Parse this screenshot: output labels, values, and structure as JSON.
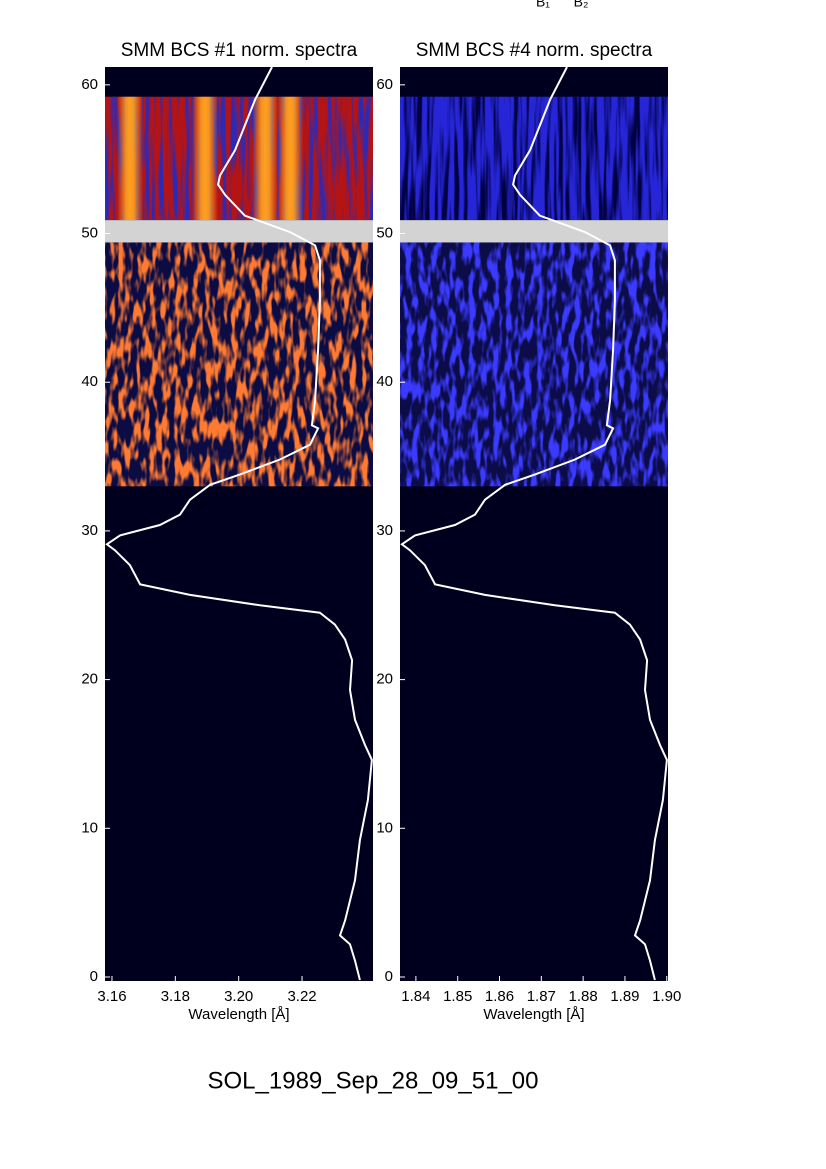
{
  "top_labels": [
    "B₁",
    "B₂"
  ],
  "chart_data": [
    {
      "type": "heatmap",
      "title": "SMM BCS #1 norm. spectra",
      "x_label": "Wavelength [Å]",
      "xlim": [
        3.1578,
        3.2424
      ],
      "xticks": [
        3.16,
        3.18,
        {
          "value": 3.2,
          "label": "3.20"
        },
        3.22
      ],
      "ylim": [
        -0.27,
        61.2
      ],
      "yticks": [
        0,
        10,
        20,
        30,
        40,
        50,
        60
      ],
      "background": "#00001e",
      "gap": [
        49.4,
        50.9
      ],
      "gap_color": "#d3d3d3",
      "bands": [
        {
          "y": [
            50.9,
            59.2
          ],
          "color": "#b41414",
          "noise_color": "#2a2ab8"
        },
        {
          "y": [
            33.0,
            49.4
          ],
          "color": "#0c0c44",
          "noise_color": "#ff7a30"
        }
      ],
      "emission_lines": [
        3.1657,
        3.1894,
        3.2084,
        3.2163
      ],
      "emission_color": "#ffa020"
    },
    {
      "type": "heatmap",
      "title": "SMM BCS #4 norm. spectra",
      "x_label": "Wavelength [Å]",
      "xlim": [
        1.8362,
        1.9003
      ],
      "xticks": [
        1.84,
        1.85,
        1.86,
        1.87,
        1.88,
        1.89,
        {
          "value": 1.9,
          "label": "1.90"
        }
      ],
      "ylim": [
        -0.27,
        61.2
      ],
      "yticks": [
        0,
        10,
        20,
        30,
        40,
        50,
        60
      ],
      "background": "#00001e",
      "gap": [
        49.4,
        50.9
      ],
      "gap_color": "#d3d3d3",
      "bands": [
        {
          "y": [
            50.9,
            59.2
          ],
          "color": "#2626d8",
          "noise_color": "#000040"
        },
        {
          "y": [
            33.0,
            49.4
          ],
          "color": "#0c0c48",
          "noise_color": "#3a3aff"
        }
      ],
      "emission_lines": [],
      "emission_color": "#6040c0"
    }
  ],
  "light_curve": {
    "color": "#ffffff",
    "x": [
      0.623,
      0.56,
      0.485,
      0.429,
      0.422,
      0.448,
      0.522,
      0.69,
      0.784,
      0.802,
      0.802,
      0.795,
      0.784,
      0.772,
      0.795,
      0.765,
      0.653,
      0.504,
      0.392,
      0.317,
      0.28,
      0.205,
      0.056,
      0.007,
      0.037,
      0.093,
      0.131,
      0.317,
      0.578,
      0.802,
      0.858,
      0.896,
      0.922,
      0.914,
      0.933,
      0.97,
      0.996,
      0.981,
      0.951,
      0.933,
      0.896,
      0.877,
      0.914,
      0.933,
      0.951
    ],
    "y": [
      61.2,
      59.0,
      55.6,
      53.9,
      53.3,
      52.6,
      51.2,
      50.1,
      49.2,
      48.2,
      45.5,
      42.2,
      38.8,
      37.1,
      36.9,
      35.8,
      34.8,
      33.8,
      33.1,
      32.1,
      31.1,
      30.4,
      29.7,
      29.1,
      28.7,
      27.7,
      26.4,
      25.7,
      25.0,
      24.5,
      23.7,
      22.7,
      21.3,
      19.3,
      17.3,
      15.6,
      14.6,
      11.9,
      9.2,
      6.5,
      3.8,
      2.8,
      2.2,
      1.1,
      -0.2
    ]
  },
  "footer": "SOL_1989_Sep_28_09_51_00"
}
